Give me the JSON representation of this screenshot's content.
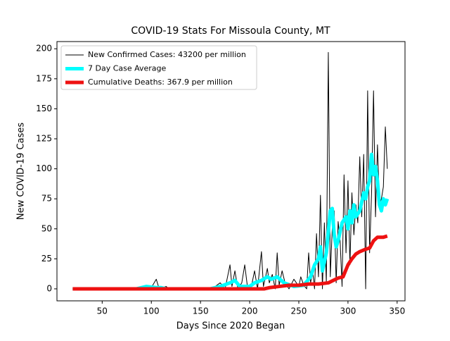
{
  "chart_data": {
    "type": "line",
    "title": "COVID-19 Stats For Missoula County, MT",
    "xlabel": "Days Since 2020 Began",
    "ylabel": "New COVID-19 Cases",
    "xlim": [
      4,
      358
    ],
    "ylim": [
      -10,
      206
    ],
    "xticks": [
      50,
      100,
      150,
      200,
      250,
      300,
      350
    ],
    "yticks": [
      0,
      25,
      50,
      75,
      100,
      125,
      150,
      175,
      200
    ],
    "legend": "upper left",
    "series": [
      {
        "name": "New Confirmed Cases: 43200 per million",
        "color": "#000000",
        "width": 1,
        "x": [
          20,
          60,
          70,
          72,
          74,
          88,
          90,
          92,
          100,
          105,
          108,
          115,
          118,
          160,
          165,
          170,
          175,
          180,
          182,
          185,
          188,
          192,
          195,
          198,
          202,
          205,
          208,
          212,
          214,
          218,
          220,
          223,
          226,
          228,
          230,
          233,
          236,
          240,
          245,
          250,
          252,
          255,
          258,
          260,
          262,
          264,
          266,
          268,
          270,
          272,
          274,
          276,
          278,
          280,
          282,
          284,
          286,
          288,
          290,
          292,
          294,
          296,
          298,
          300,
          302,
          304,
          306,
          308,
          310,
          312,
          314,
          316,
          318,
          320,
          322,
          324,
          326,
          328,
          330,
          332,
          334,
          336,
          338,
          340
        ],
        "values": [
          0,
          0,
          0,
          1,
          0,
          0,
          2,
          0,
          1,
          8,
          0,
          2,
          0,
          0,
          2,
          5,
          0,
          20,
          2,
          15,
          0,
          5,
          20,
          0,
          3,
          15,
          0,
          31,
          2,
          17,
          5,
          12,
          0,
          30,
          3,
          15,
          5,
          0,
          8,
          2,
          10,
          3,
          0,
          30,
          5,
          15,
          0,
          46,
          10,
          78,
          0,
          55,
          5,
          197,
          10,
          50,
          65,
          5,
          56,
          40,
          2,
          95,
          30,
          90,
          20,
          80,
          45,
          70,
          55,
          110,
          60,
          112,
          0,
          165,
          30,
          80,
          165,
          60,
          120,
          70,
          75,
          85,
          135,
          100
        ]
      },
      {
        "name": "7 Day Case Average",
        "color": "#00ffff",
        "width": 5,
        "x": [
          20,
          85,
          95,
          105,
          110,
          115,
          160,
          170,
          180,
          185,
          190,
          200,
          205,
          212,
          218,
          222,
          228,
          235,
          245,
          255,
          262,
          266,
          270,
          272,
          274,
          278,
          282,
          284,
          286,
          288,
          290,
          294,
          298,
          300,
          302,
          304,
          306,
          308,
          312,
          316,
          318,
          320,
          322,
          324,
          326,
          328,
          330,
          332,
          334,
          336,
          338,
          340
        ],
        "values": [
          0,
          0,
          2,
          1,
          1,
          0,
          0,
          2,
          5,
          7,
          2,
          2,
          5,
          7,
          10,
          8,
          10,
          5,
          2,
          3,
          10,
          20,
          25,
          35,
          15,
          30,
          65,
          67,
          45,
          35,
          40,
          55,
          60,
          50,
          65,
          55,
          70,
          60,
          65,
          80,
          75,
          85,
          90,
          112,
          95,
          102,
          90,
          70,
          65,
          75,
          70,
          75
        ]
      },
      {
        "name": "Cumulative Deaths: 367.9 per million",
        "color": "#ee1111",
        "width": 5,
        "x": [
          20,
          215,
          220,
          230,
          240,
          250,
          260,
          270,
          280,
          285,
          290,
          295,
          300,
          304,
          308,
          312,
          318,
          322,
          326,
          330,
          336,
          340
        ],
        "values": [
          0,
          0,
          1,
          2,
          3,
          3,
          4,
          4,
          5,
          7,
          9,
          10,
          20,
          25,
          29,
          31,
          33,
          34,
          40,
          43,
          43,
          44
        ]
      }
    ]
  }
}
